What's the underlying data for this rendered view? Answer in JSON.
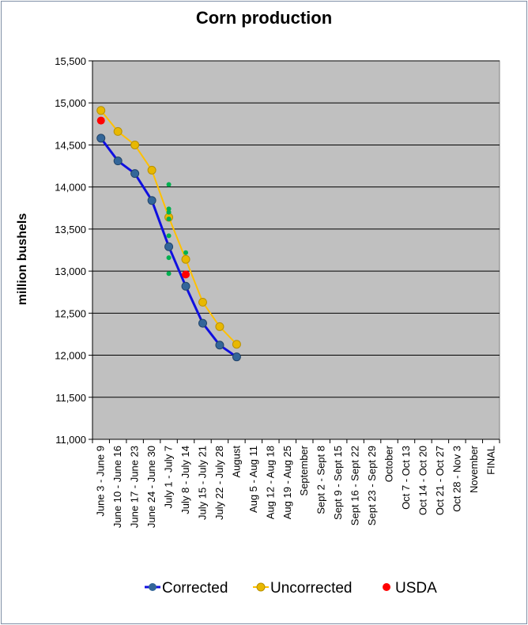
{
  "chart_data": {
    "type": "line",
    "title": "Corn production",
    "ylabel": "million bushels",
    "xlabel": "",
    "ylim": [
      11000,
      15500
    ],
    "y_ticks": [
      "11,000",
      "11,500",
      "12,000",
      "12,500",
      "13,000",
      "13,500",
      "14,000",
      "14,500",
      "15,000",
      "15,500"
    ],
    "y_tick_values": [
      11000,
      11500,
      12000,
      12500,
      13000,
      13500,
      14000,
      14500,
      15000,
      15500
    ],
    "grid": true,
    "legend_position": "bottom",
    "categories": [
      "June 3 - June 9",
      "June 10 - June 16",
      "June 17 - June 23",
      "June 24 - June 30",
      "July 1 - July 7",
      "July 8 - July 14",
      "July 15 - July 21",
      "July 22 - July 28",
      "August",
      "Aug 5 - Aug 11",
      "Aug 12 - Aug 18",
      "Aug 19 - Aug 25",
      "September",
      "Sept 2 - Sept 8",
      "Sept 9 - Sept 15",
      "Sept 16 - Sept 22",
      "Sept 23 - Sept 29",
      "October",
      "Oct 7 - Oct 13",
      "Oct 14 - Oct 20",
      "Oct 21 - Oct 27",
      "Oct 28 - Nov 3",
      "November",
      "FINAL"
    ],
    "series": [
      {
        "name": "Corrected",
        "color": "#1010e0",
        "marker_color": "#336699",
        "points": [
          [
            0,
            14580
          ],
          [
            1,
            14310
          ],
          [
            2,
            14160
          ],
          [
            3,
            13840
          ],
          [
            4,
            13290
          ],
          [
            5,
            12820
          ],
          [
            6,
            12380
          ],
          [
            7,
            12120
          ],
          [
            8,
            11980
          ]
        ]
      },
      {
        "name": "Uncorrected",
        "color": "#ffc000",
        "marker_color": "#e8b800",
        "points": [
          [
            0,
            14910
          ],
          [
            1,
            14660
          ],
          [
            2,
            14500
          ],
          [
            3,
            14200
          ],
          [
            4,
            13640
          ],
          [
            5,
            13140
          ],
          [
            6,
            12630
          ],
          [
            7,
            12340
          ],
          [
            8,
            12130
          ]
        ]
      },
      {
        "name": "USDA",
        "color": "#ff0000",
        "points": [
          [
            0,
            14790
          ],
          [
            5,
            12960
          ]
        ]
      }
    ],
    "extra_points": {
      "color": "#00b050",
      "points": [
        [
          4,
          14030
        ],
        [
          4,
          13740
        ],
        [
          4,
          13700
        ],
        [
          4,
          13620
        ],
        [
          4,
          13420
        ],
        [
          4,
          13160
        ],
        [
          4,
          12970
        ],
        [
          5,
          13220
        ]
      ]
    }
  }
}
